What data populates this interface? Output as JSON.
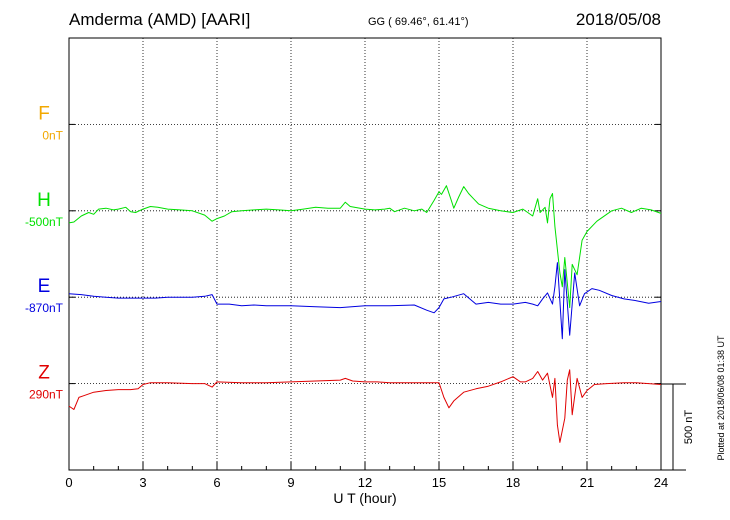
{
  "header": {
    "station": "Amderma (AMD)  [AARI]",
    "coords": "GG ( 69.46°,  61.41°)",
    "date": "2018/05/08"
  },
  "footer_note": "Plotted at 2018/06/08 01:38 UT",
  "scale_bar": {
    "label": "500 nT",
    "value": 500
  },
  "chart_data": {
    "type": "line",
    "xlabel": "U T (hour)",
    "xlim": [
      0,
      24
    ],
    "x_ticks": [
      "0",
      "3",
      "6",
      "9",
      "12",
      "15",
      "18",
      "21",
      "24"
    ],
    "series": [
      {
        "name": "F",
        "baseline_label": "0nT",
        "color": "#f2a800",
        "baseline_row": 1,
        "points": []
      },
      {
        "name": "H",
        "baseline_label": "-500nT",
        "color": "#00e000",
        "baseline_row": 2,
        "points": [
          [
            0.0,
            -70
          ],
          [
            0.2,
            -65
          ],
          [
            0.5,
            -30
          ],
          [
            0.8,
            -10
          ],
          [
            1.0,
            -20
          ],
          [
            1.2,
            10
          ],
          [
            1.5,
            15
          ],
          [
            1.8,
            5
          ],
          [
            2.0,
            10
          ],
          [
            2.3,
            20
          ],
          [
            2.5,
            -5
          ],
          [
            2.7,
            -10
          ],
          [
            3.0,
            10
          ],
          [
            3.3,
            25
          ],
          [
            3.6,
            20
          ],
          [
            4.0,
            10
          ],
          [
            4.5,
            5
          ],
          [
            5.0,
            0
          ],
          [
            5.5,
            -25
          ],
          [
            5.8,
            -60
          ],
          [
            6.0,
            -45
          ],
          [
            6.3,
            -30
          ],
          [
            6.6,
            -5
          ],
          [
            7.0,
            0
          ],
          [
            7.5,
            5
          ],
          [
            8.0,
            10
          ],
          [
            8.5,
            5
          ],
          [
            9.0,
            0
          ],
          [
            9.5,
            10
          ],
          [
            10.0,
            20
          ],
          [
            10.5,
            15
          ],
          [
            11.0,
            15
          ],
          [
            11.2,
            50
          ],
          [
            11.4,
            25
          ],
          [
            11.8,
            15
          ],
          [
            12.0,
            10
          ],
          [
            12.4,
            5
          ],
          [
            12.8,
            10
          ],
          [
            13.0,
            15
          ],
          [
            13.2,
            -5
          ],
          [
            13.6,
            15
          ],
          [
            14.0,
            0
          ],
          [
            14.3,
            10
          ],
          [
            14.5,
            -10
          ],
          [
            14.8,
            60
          ],
          [
            15.0,
            110
          ],
          [
            15.1,
            95
          ],
          [
            15.3,
            145
          ],
          [
            15.5,
            60
          ],
          [
            15.6,
            15
          ],
          [
            15.8,
            80
          ],
          [
            16.0,
            140
          ],
          [
            16.2,
            100
          ],
          [
            16.4,
            70
          ],
          [
            16.6,
            40
          ],
          [
            17.0,
            15
          ],
          [
            17.5,
            0
          ],
          [
            18.0,
            -10
          ],
          [
            18.4,
            10
          ],
          [
            18.8,
            -30
          ],
          [
            19.0,
            70
          ],
          [
            19.1,
            -10
          ],
          [
            19.3,
            20
          ],
          [
            19.4,
            -70
          ],
          [
            19.5,
            70
          ],
          [
            19.6,
            100
          ],
          [
            19.7,
            -90
          ],
          [
            19.9,
            -360
          ],
          [
            20.0,
            -440
          ],
          [
            20.1,
            -270
          ],
          [
            20.3,
            -560
          ],
          [
            20.4,
            -310
          ],
          [
            20.6,
            -370
          ],
          [
            20.8,
            -170
          ],
          [
            21.0,
            -120
          ],
          [
            21.4,
            -60
          ],
          [
            21.8,
            -20
          ],
          [
            22.0,
            0
          ],
          [
            22.4,
            15
          ],
          [
            22.8,
            -10
          ],
          [
            23.2,
            15
          ],
          [
            23.6,
            5
          ],
          [
            24.0,
            -15
          ]
        ]
      },
      {
        "name": "E",
        "baseline_label": "-870nT",
        "color": "#0000e0",
        "baseline_row": 3,
        "points": [
          [
            0.0,
            20
          ],
          [
            0.5,
            15
          ],
          [
            1.0,
            5
          ],
          [
            1.5,
            0
          ],
          [
            2.0,
            -5
          ],
          [
            2.5,
            -5
          ],
          [
            3.0,
            -5
          ],
          [
            3.5,
            -5
          ],
          [
            4.0,
            0
          ],
          [
            4.5,
            0
          ],
          [
            5.0,
            0
          ],
          [
            5.5,
            5
          ],
          [
            5.8,
            15
          ],
          [
            6.0,
            -40
          ],
          [
            6.5,
            -40
          ],
          [
            7.0,
            -50
          ],
          [
            7.5,
            -45
          ],
          [
            8.0,
            -50
          ],
          [
            9.0,
            -50
          ],
          [
            10.0,
            -55
          ],
          [
            11.0,
            -60
          ],
          [
            12.0,
            -50
          ],
          [
            13.0,
            -50
          ],
          [
            14.0,
            -45
          ],
          [
            14.5,
            -75
          ],
          [
            14.8,
            -90
          ],
          [
            15.0,
            -60
          ],
          [
            15.2,
            -10
          ],
          [
            15.5,
            0
          ],
          [
            16.0,
            20
          ],
          [
            16.5,
            -40
          ],
          [
            17.0,
            -30
          ],
          [
            17.5,
            -40
          ],
          [
            18.0,
            -40
          ],
          [
            18.5,
            -30
          ],
          [
            18.8,
            -40
          ],
          [
            19.0,
            -50
          ],
          [
            19.2,
            -10
          ],
          [
            19.4,
            25
          ],
          [
            19.6,
            -40
          ],
          [
            19.7,
            60
          ],
          [
            19.8,
            200
          ],
          [
            20.0,
            -240
          ],
          [
            20.1,
            160
          ],
          [
            20.3,
            -220
          ],
          [
            20.5,
            140
          ],
          [
            20.7,
            -50
          ],
          [
            20.9,
            20
          ],
          [
            21.2,
            50
          ],
          [
            21.5,
            40
          ],
          [
            22.0,
            10
          ],
          [
            22.5,
            -10
          ],
          [
            23.0,
            -20
          ],
          [
            23.5,
            -35
          ],
          [
            24.0,
            -25
          ]
        ]
      },
      {
        "name": "Z",
        "baseline_label": "290nT",
        "color": "#e00000",
        "baseline_row": 4,
        "points": [
          [
            0.0,
            -130
          ],
          [
            0.2,
            -150
          ],
          [
            0.4,
            -80
          ],
          [
            0.6,
            -70
          ],
          [
            1.0,
            -50
          ],
          [
            1.5,
            -40
          ],
          [
            2.0,
            -35
          ],
          [
            2.5,
            -35
          ],
          [
            2.8,
            -30
          ],
          [
            3.0,
            -5
          ],
          [
            3.3,
            5
          ],
          [
            3.6,
            5
          ],
          [
            4.0,
            5
          ],
          [
            5.0,
            0
          ],
          [
            5.5,
            0
          ],
          [
            5.8,
            -20
          ],
          [
            6.0,
            10
          ],
          [
            7.0,
            5
          ],
          [
            8.0,
            5
          ],
          [
            9.0,
            10
          ],
          [
            10.0,
            15
          ],
          [
            11.0,
            20
          ],
          [
            11.2,
            30
          ],
          [
            11.5,
            15
          ],
          [
            12.0,
            10
          ],
          [
            12.5,
            10
          ],
          [
            13.0,
            5
          ],
          [
            14.0,
            5
          ],
          [
            14.5,
            5
          ],
          [
            15.0,
            5
          ],
          [
            15.2,
            -80
          ],
          [
            15.4,
            -140
          ],
          [
            15.6,
            -100
          ],
          [
            16.0,
            -50
          ],
          [
            16.5,
            -30
          ],
          [
            17.0,
            -15
          ],
          [
            17.5,
            10
          ],
          [
            18.0,
            40
          ],
          [
            18.3,
            10
          ],
          [
            18.5,
            10
          ],
          [
            18.8,
            30
          ],
          [
            19.0,
            70
          ],
          [
            19.2,
            20
          ],
          [
            19.4,
            60
          ],
          [
            19.6,
            -80
          ],
          [
            19.7,
            30
          ],
          [
            19.8,
            -240
          ],
          [
            19.9,
            -340
          ],
          [
            20.1,
            -200
          ],
          [
            20.2,
            20
          ],
          [
            20.3,
            80
          ],
          [
            20.4,
            -180
          ],
          [
            20.6,
            30
          ],
          [
            20.8,
            -80
          ],
          [
            21.0,
            -40
          ],
          [
            21.3,
            -5
          ],
          [
            21.8,
            0
          ],
          [
            22.5,
            5
          ],
          [
            23.0,
            5
          ],
          [
            23.5,
            0
          ],
          [
            24.0,
            -5
          ]
        ]
      }
    ],
    "grid": true
  }
}
